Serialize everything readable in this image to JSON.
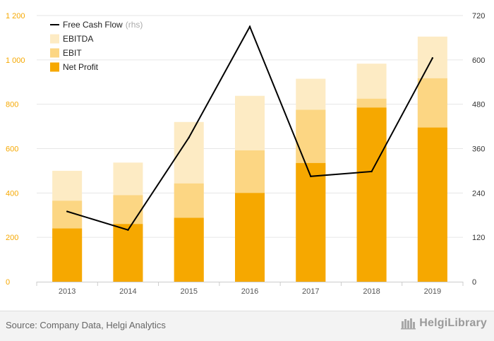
{
  "chart_data": {
    "type": "bar",
    "subtype": "stacked-overlay-with-line",
    "categories": [
      "2013",
      "2014",
      "2015",
      "2016",
      "2017",
      "2018",
      "2019"
    ],
    "series": [
      {
        "name": "EBITDA",
        "kind": "bar",
        "axis": "left",
        "color": "#fdebc4",
        "values": [
          500,
          537,
          720,
          838,
          915,
          983,
          1105
        ]
      },
      {
        "name": "EBIT",
        "kind": "bar",
        "axis": "left",
        "color": "#fcd683",
        "values": [
          365,
          390,
          443,
          592,
          775,
          825,
          917
        ]
      },
      {
        "name": "Net Profit",
        "kind": "bar",
        "axis": "left",
        "color": "#f6a800",
        "values": [
          240,
          260,
          288,
          400,
          535,
          785,
          695
        ]
      },
      {
        "name": "Free Cash Flow",
        "kind": "line",
        "axis": "right",
        "color": "#000000",
        "values": [
          190,
          140,
          390,
          690,
          285,
          298,
          605
        ]
      }
    ],
    "legend": [
      {
        "label": "Free Cash Flow",
        "suffix": "(rhs)",
        "marker": "line",
        "color": "#000000"
      },
      {
        "label": "EBITDA",
        "suffix": "",
        "marker": "square",
        "color": "#fdebc4"
      },
      {
        "label": "EBIT",
        "suffix": "",
        "marker": "square",
        "color": "#fcd683"
      },
      {
        "label": "Net Profit",
        "suffix": "",
        "marker": "square",
        "color": "#f6a800"
      }
    ],
    "legend_position": "top-left",
    "y_left": {
      "min": 0,
      "max": 1200,
      "ticks": [
        0,
        200,
        400,
        600,
        800,
        1000,
        1200
      ],
      "tick_labels": [
        "0",
        "200",
        "400",
        "600",
        "800",
        "1 000",
        "1 200"
      ],
      "color": "#f6a800"
    },
    "y_right": {
      "min": 0,
      "max": 720,
      "ticks": [
        0,
        120,
        240,
        360,
        480,
        600,
        720
      ],
      "tick_labels": [
        "0",
        "120",
        "240",
        "360",
        "480",
        "600",
        "720"
      ],
      "color": "#333333"
    },
    "grid": true,
    "title": "",
    "xlabel": "",
    "ylabel": ""
  },
  "footer": {
    "source": "Source: Company Data, Helgi Analytics",
    "logo_text": "HelgiLibrary",
    "logo_icon": "helgi-logo-icon"
  }
}
